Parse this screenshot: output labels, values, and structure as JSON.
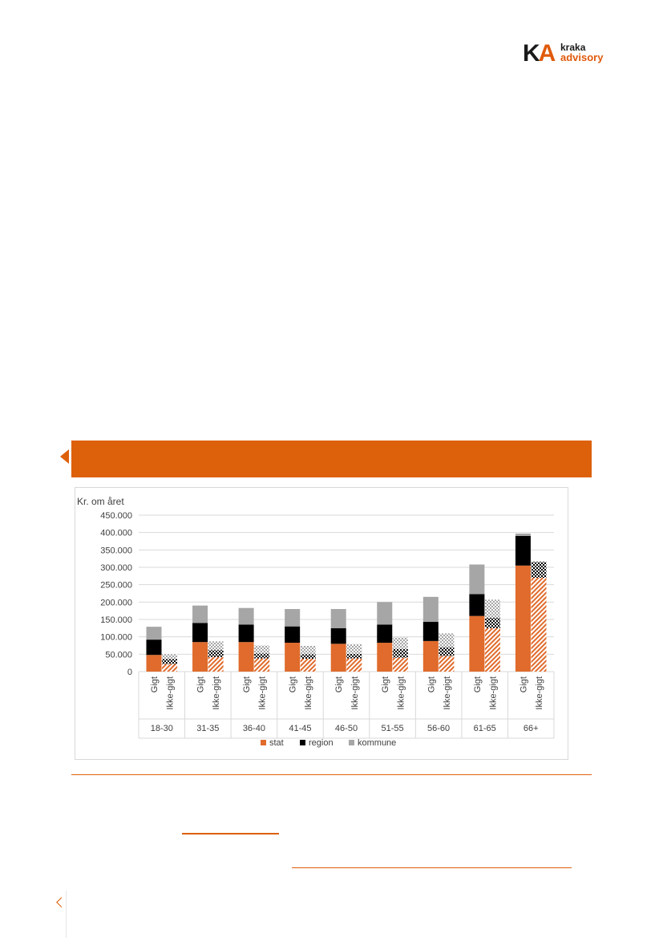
{
  "header": {
    "logo_mark_k": "K",
    "logo_mark_a": "A",
    "logo_word1": "kraka",
    "logo_word2": "advisory"
  },
  "colors": {
    "accent": "#dd600b",
    "stat": "#e06b2c",
    "region": "#000000",
    "kommune": "#a6a6a6",
    "grid": "#d9d9d9"
  },
  "chart_data": {
    "type": "bar",
    "stacked": true,
    "ylabel": "Kr. om året",
    "ylim": [
      0,
      450000
    ],
    "yticks": [
      "450.000",
      "400.000",
      "350.000",
      "300.000",
      "250.000",
      "200.000",
      "150.000",
      "100.000",
      "50.000",
      "0"
    ],
    "groups": [
      "18-30",
      "31-35",
      "36-40",
      "41-45",
      "46-50",
      "51-55",
      "56-60",
      "61-65",
      "66+"
    ],
    "subcategories": [
      "Gigt",
      "Ikke-gigt"
    ],
    "series": [
      {
        "name": "stat",
        "gigt": [
          48000,
          85000,
          85000,
          83000,
          80000,
          83000,
          88000,
          160000,
          305000
        ],
        "ikke_gigt": [
          22000,
          42000,
          38000,
          37000,
          38000,
          40000,
          45000,
          125000,
          270000
        ]
      },
      {
        "name": "region",
        "gigt": [
          44000,
          55000,
          50000,
          47000,
          45000,
          52000,
          55000,
          63000,
          85000
        ],
        "ikke_gigt": [
          14000,
          20000,
          14000,
          13000,
          13000,
          25000,
          25000,
          30000,
          45000
        ]
      },
      {
        "name": "kommune",
        "gigt": [
          37000,
          50000,
          48000,
          50000,
          55000,
          65000,
          72000,
          85000,
          7000
        ],
        "ikke_gigt": [
          14000,
          25000,
          23000,
          24000,
          28000,
          33000,
          40000,
          52000,
          2000
        ]
      }
    ],
    "legend": [
      "stat",
      "region",
      "kommune"
    ],
    "legend_position": "bottom",
    "grid": true
  }
}
